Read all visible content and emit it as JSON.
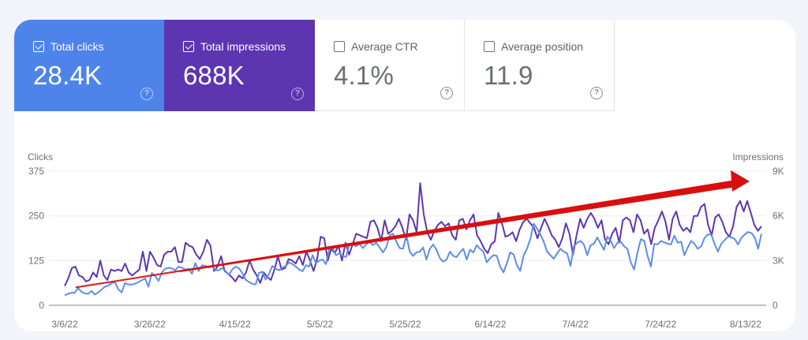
{
  "metrics": [
    {
      "key": "clicks",
      "label": "Total clicks",
      "value": "28.4K",
      "checked": true,
      "color": "#4e84ea"
    },
    {
      "key": "impressions",
      "label": "Total impressions",
      "value": "688K",
      "checked": true,
      "color": "#5e35b1"
    },
    {
      "key": "ctr",
      "label": "Average CTR",
      "value": "4.1%",
      "checked": false
    },
    {
      "key": "position",
      "label": "Average position",
      "value": "11.9",
      "checked": false
    }
  ],
  "help_glyph": "?",
  "chart_data": {
    "type": "line",
    "title": "",
    "left_axis": {
      "label": "Clicks",
      "ticks": [
        "0",
        "125",
        "250",
        "375"
      ],
      "range": [
        0,
        375
      ]
    },
    "right_axis": {
      "label": "Impressions",
      "ticks": [
        "0",
        "3K",
        "6K",
        "9K"
      ],
      "range": [
        0,
        9000
      ]
    },
    "x_tick_labels": [
      "3/6/22",
      "3/26/22",
      "4/15/22",
      "5/5/22",
      "5/25/22",
      "6/14/22",
      "7/4/22",
      "7/24/22",
      "8/13/22"
    ],
    "x_range": [
      "3/4/22",
      "8/16/22"
    ],
    "grid": true,
    "series": [
      {
        "name": "Clicks",
        "axis": "left",
        "color": "#5b8ee6",
        "values": [
          28,
          32,
          35,
          35,
          48,
          38,
          33,
          32,
          40,
          30,
          36,
          44,
          52,
          55,
          62,
          65,
          45,
          36,
          62,
          58,
          58,
          60,
          65,
          70,
          75,
          52,
          90,
          82,
          68,
          92,
          102,
          105,
          103,
          98,
          108,
          105,
          100,
          102,
          88,
          118,
          96,
          112,
          110,
          106,
          108,
          98,
          98,
          104,
          96,
          85,
          100,
          108,
          104,
          90,
          72,
          65,
          60,
          58,
          90,
          94,
          72,
          88,
          110,
          102,
          98,
          105,
          110,
          120,
          115,
          108,
          100,
          95,
          112,
          108,
          140,
          118,
          125,
          128,
          115,
          158,
          160,
          140,
          145,
          138,
          135,
          172,
          170,
          165,
          172,
          160,
          170,
          178,
          168,
          175,
          162,
          148,
          162,
          195,
          200,
          178,
          160,
          158,
          196,
          150,
          138,
          148,
          150,
          162,
          128,
          158,
          170,
          155,
          132,
          122,
          128,
          150,
          138,
          135,
          148,
          158,
          128,
          155,
          148,
          168,
          158,
          150,
          120,
          132,
          140,
          138,
          108,
          92,
          118,
          148,
          142,
          112,
          96,
          140,
          158,
          185,
          228,
          215,
          198,
          178,
          150,
          140,
          130,
          145,
          158,
          150,
          145,
          110,
          165,
          175,
          180,
          170,
          140,
          168,
          172,
          190,
          172,
          155,
          192,
          180,
          160,
          175,
          178,
          165,
          158,
          120,
          100,
          148,
          185,
          180,
          138,
          108,
          172,
          170,
          180,
          176,
          172,
          170,
          195,
          175,
          178,
          140,
          162,
          180,
          172,
          158,
          165,
          188,
          198,
          198,
          172,
          150,
          172,
          182,
          192,
          190,
          186,
          170,
          188,
          198,
          205,
          202,
          190,
          158,
          200
        ],
        "note": "values approximate, read from pixel positions"
      },
      {
        "name": "Impressions",
        "axis": "right",
        "color": "#5e35b1",
        "values": [
          1300,
          1800,
          2500,
          2600,
          2000,
          1900,
          1600,
          1700,
          2200,
          1900,
          3000,
          2000,
          1700,
          2400,
          2300,
          2400,
          2300,
          2800,
          2200,
          2000,
          2200,
          2400,
          3600,
          2300,
          3600,
          3200,
          2700,
          2600,
          3400,
          3600,
          3600,
          3900,
          2900,
          2900,
          4200,
          4000,
          3900,
          3400,
          3100,
          3600,
          4400,
          4000,
          2300,
          2600,
          3300,
          2300,
          2100,
          1900,
          1600,
          2000,
          1800,
          2200,
          3000,
          2400,
          2000,
          1500,
          2200,
          1900,
          1700,
          2400,
          3300,
          2400,
          2500,
          3100,
          3000,
          2800,
          3300,
          2700,
          3600,
          3000,
          2300,
          3100,
          4600,
          4500,
          3000,
          3800,
          3500,
          4000,
          3000,
          4200,
          3400,
          4100,
          4800,
          4700,
          4600,
          4500,
          5600,
          5700,
          5200,
          4300,
          5700,
          4800,
          5000,
          5300,
          5800,
          5200,
          4400,
          6100,
          5700,
          4900,
          8200,
          6100,
          4900,
          4400,
          5000,
          5400,
          5600,
          5300,
          5500,
          4700,
          4400,
          5700,
          5800,
          5100,
          5700,
          6100,
          4700,
          4300,
          3800,
          3500,
          4100,
          4300,
          6200,
          5500,
          4600,
          4700,
          4900,
          4300,
          5100,
          5600,
          5800,
          5500,
          5200,
          4500,
          5200,
          5800,
          5300,
          4700,
          4400,
          3900,
          4500,
          5500,
          4800,
          3400,
          4700,
          5800,
          5200,
          5800,
          6200,
          5800,
          5200,
          5700,
          4400,
          4100,
          4800,
          5200,
          4200,
          5700,
          5900,
          5700,
          4900,
          6100,
          5700,
          4800,
          5100,
          4100,
          5200,
          5700,
          6300,
          5600,
          4400,
          5800,
          6300,
          5400,
          5000,
          5200,
          4900,
          6000,
          6000,
          6600,
          6800,
          5400,
          4700,
          5900,
          6100,
          5600,
          4900,
          4600,
          5300,
          6600,
          7000,
          6300,
          7000,
          6200,
          5400,
          5000,
          5300
        ],
        "note": "values approximate, read from pixel positions"
      }
    ],
    "annotation": {
      "type": "arrow",
      "color": "#d90e0e",
      "description": "red upward trend arrow from early March to mid August",
      "from": {
        "date": "3/10/22",
        "clicks": 50
      },
      "to": {
        "date": "8/13/22",
        "clicks": 340
      }
    }
  }
}
